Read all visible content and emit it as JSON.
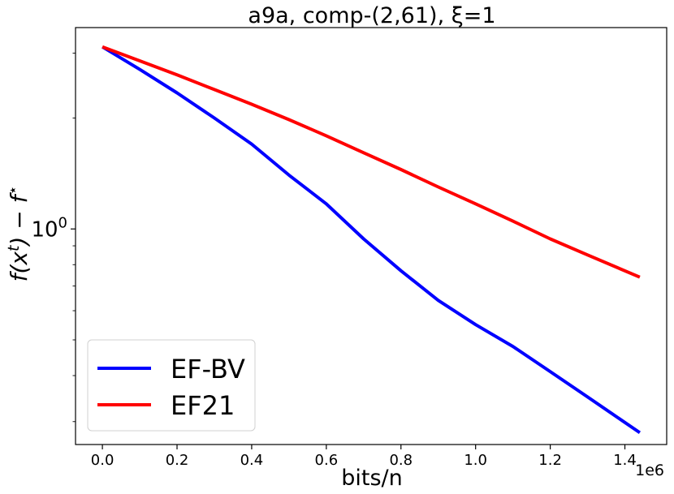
{
  "chart_data": {
    "type": "line",
    "title": "a9a, comp-(2,61), ξ=1",
    "xlabel": "bits/n",
    "ylabel": "f(x^t) − f*",
    "x_offset_label": "1e6",
    "x_scale": "linear",
    "y_scale": "log",
    "xlim": [
      -0.072,
      1.512
    ],
    "ylim": [
      0.26,
      3.52
    ],
    "x_ticks": [
      0.0,
      0.2,
      0.4,
      0.6,
      0.8,
      1.0,
      1.2,
      1.4
    ],
    "x_tick_labels": [
      "0.0",
      "0.2",
      "0.4",
      "0.6",
      "0.8",
      "1.0",
      "1.2",
      "1.4"
    ],
    "y_major_ticks": [
      1.0
    ],
    "y_major_tick_labels": [
      "10^0"
    ],
    "y_minor_ticks": [
      0.3,
      0.4,
      0.5,
      0.6,
      0.7,
      0.8,
      0.9,
      2.0,
      3.0
    ],
    "legend": "lower-left",
    "grid": false,
    "series": [
      {
        "name": "EF-BV",
        "color": "#0000ff",
        "x": [
          0.0,
          0.1,
          0.2,
          0.3,
          0.4,
          0.5,
          0.6,
          0.7,
          0.8,
          0.9,
          1.0,
          1.1,
          1.2,
          1.3,
          1.44
        ],
        "y": [
          3.12,
          2.71,
          2.34,
          2.0,
          1.7,
          1.4,
          1.17,
          0.94,
          0.77,
          0.64,
          0.55,
          0.48,
          0.41,
          0.35,
          0.28
        ]
      },
      {
        "name": "EF21",
        "color": "#ff0000",
        "x": [
          0.0,
          0.1,
          0.2,
          0.3,
          0.4,
          0.5,
          0.6,
          0.7,
          0.8,
          0.9,
          1.0,
          1.1,
          1.2,
          1.3,
          1.44
        ],
        "y": [
          3.12,
          2.86,
          2.62,
          2.39,
          2.18,
          1.98,
          1.79,
          1.61,
          1.45,
          1.3,
          1.17,
          1.05,
          0.94,
          0.85,
          0.74
        ]
      }
    ]
  }
}
